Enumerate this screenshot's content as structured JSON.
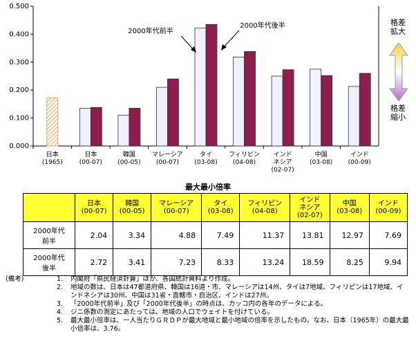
{
  "chart_data": {
    "type": "bar",
    "categories": [
      "日本",
      "日本",
      "韓国",
      "マレーシア",
      "タイ",
      "フィリピン",
      "インド\nネシア",
      "中国",
      "インド"
    ],
    "periods": [
      "(1965)",
      "(00-07)",
      "(00-05)",
      "(00-07)",
      "(03-08)",
      "(04-08)",
      "(02-07)",
      "(03-08)",
      "(00-09)"
    ],
    "reference_values": [
      0.172,
      null,
      null,
      null,
      null,
      null,
      null,
      null,
      null
    ],
    "reference_color": "#f0a060",
    "series": [
      {
        "name": "2000年代前半",
        "color": "#f0f0ff",
        "values": [
          null,
          0.135,
          0.11,
          0.21,
          0.422,
          0.318,
          0.25,
          0.275,
          0.213
        ]
      },
      {
        "name": "2000年代後半",
        "color": "#8b1e4f",
        "values": [
          null,
          0.138,
          0.135,
          0.24,
          0.435,
          0.338,
          0.273,
          0.252,
          0.26
        ]
      }
    ],
    "ylim": [
      0,
      0.5
    ],
    "yticks": [
      {
        "value": 0,
        "label": "0.000"
      },
      {
        "value": 0.1,
        "label": "0.100"
      },
      {
        "value": 0.2,
        "label": "0.200"
      },
      {
        "value": 0.3,
        "label": "0.300"
      },
      {
        "value": 0.4,
        "label": "0.400"
      },
      {
        "value": 0.5,
        "label": "0.500"
      }
    ],
    "grid": false,
    "annotations": {
      "up": "格差\n拡大",
      "down": "格差\n縮小"
    }
  },
  "table": {
    "title": "最大最小倍率",
    "header": [
      "日本\n(00-07)",
      "韓国\n(00-05)",
      "マレーシア\n(00-07)",
      "タイ\n(03-08)",
      "フィリピン\n(04-08)",
      "インド\nネシア\n(02-07)",
      "中国\n(03-08)",
      "インド\n(00-09)"
    ],
    "rows": [
      {
        "label": "2000年代\n前半",
        "values": [
          2.04,
          3.34,
          4.88,
          7.49,
          11.37,
          13.81,
          12.97,
          7.69
        ]
      },
      {
        "label": "2000年代\n後半",
        "values": [
          2.72,
          3.41,
          7.23,
          8.33,
          13.24,
          18.59,
          8.25,
          9.94
        ]
      }
    ]
  },
  "notes": {
    "label": "(備考)",
    "items": [
      {
        "number": "1.",
        "text": "内閣府「県民経済計算」ほか、各国統計資料より作成。"
      },
      {
        "number": "2.",
        "text": "地域の数は、日本は47都道府県、韓国は16道・市、マレーシアは14州、タイは7地域、フィリピンは17地域、インドネシアは30州、中国は31省・直轄市・自治区、インドは27州。"
      },
      {
        "number": "3.",
        "text": "「2000年代前半」及び「2000年代後半」の時点は、カッコ内の各年のデータによる。"
      },
      {
        "number": "4.",
        "text": "ジニ係数の測定にあたっては、地域の人口でウェイトを付けている。"
      },
      {
        "number": "5.",
        "text": "最大最小倍率は、一人当たりＧＲＤＰが最大地域と最小地域の倍率を示したもの。なお、日本（1965年）の最大最小倍率は、3.76。"
      }
    ]
  }
}
